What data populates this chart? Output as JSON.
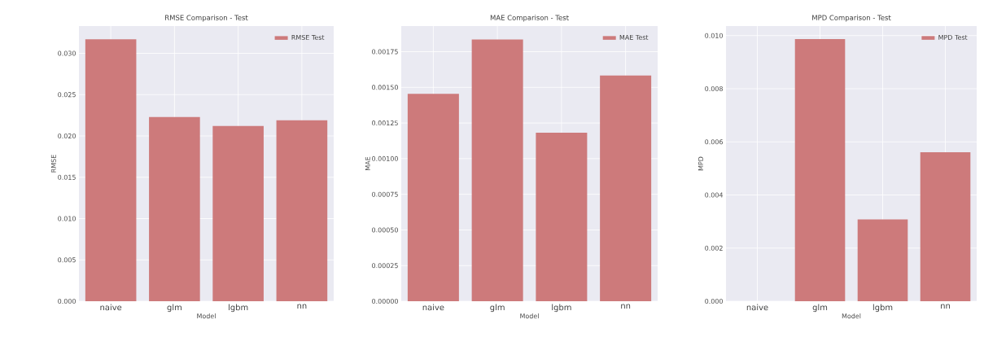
{
  "chart_data": [
    {
      "type": "bar",
      "title": "RMSE Comparison - Test",
      "xlabel": "Model",
      "ylabel": "RMSE",
      "categories": [
        "naive",
        "glm",
        "lgbm",
        "nn"
      ],
      "series": [
        {
          "name": "RMSE Test",
          "color": "#cd7a7b",
          "values": [
            0.0317,
            0.0223,
            0.0212,
            0.0219
          ]
        }
      ],
      "ylim": [
        0,
        0.0333
      ],
      "yticks": [
        {
          "value": 0,
          "label": "0.000"
        },
        {
          "value": 0.005,
          "label": "0.005"
        },
        {
          "value": 0.01,
          "label": "0.010"
        },
        {
          "value": 0.015,
          "label": "0.015"
        },
        {
          "value": 0.02,
          "label": "0.020"
        },
        {
          "value": 0.025,
          "label": "0.025"
        },
        {
          "value": 0.03,
          "label": "0.030"
        }
      ],
      "grid": true,
      "legend": "top right"
    },
    {
      "type": "bar",
      "title": "MAE Comparison - Test",
      "xlabel": "Model",
      "ylabel": "MAE",
      "categories": [
        "naive",
        "glm",
        "lgbm",
        "nn"
      ],
      "series": [
        {
          "name": "MAE Test",
          "color": "#cd7a7b",
          "values": [
            0.001455,
            0.001836,
            0.001182,
            0.001583
          ]
        }
      ],
      "ylim": [
        0,
        0.00193
      ],
      "yticks": [
        {
          "value": 0,
          "label": "0.00000"
        },
        {
          "value": 0.00025,
          "label": "0.00025"
        },
        {
          "value": 0.0005,
          "label": "0.00050"
        },
        {
          "value": 0.00075,
          "label": "0.00075"
        },
        {
          "value": 0.001,
          "label": "0.00100"
        },
        {
          "value": 0.00125,
          "label": "0.00125"
        },
        {
          "value": 0.0015,
          "label": "0.00150"
        },
        {
          "value": 0.00175,
          "label": "0.00175"
        }
      ],
      "grid": true,
      "legend": "top right"
    },
    {
      "type": "bar",
      "title": "MPD Comparison - Test",
      "xlabel": "Model",
      "ylabel": "MPD",
      "categories": [
        "naive",
        "glm",
        "lgbm",
        "nn"
      ],
      "series": [
        {
          "name": "MPD Test",
          "color": "#cd7a7b",
          "values": [
            0,
            0.00987,
            0.00308,
            0.00561
          ]
        }
      ],
      "ylim": [
        0,
        0.01036
      ],
      "yticks": [
        {
          "value": 0,
          "label": "0.000"
        },
        {
          "value": 0.002,
          "label": "0.002"
        },
        {
          "value": 0.004,
          "label": "0.004"
        },
        {
          "value": 0.006,
          "label": "0.006"
        },
        {
          "value": 0.008,
          "label": "0.008"
        },
        {
          "value": 0.01,
          "label": "0.010"
        }
      ],
      "grid": true,
      "legend": "top right"
    }
  ]
}
